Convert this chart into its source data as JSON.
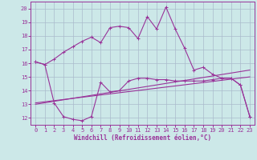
{
  "xlabel": "Windchill (Refroidissement éolien,°C)",
  "bg_color": "#cce8e8",
  "grid_color": "#aabbcc",
  "line_color": "#993399",
  "x_ticks": [
    0,
    1,
    2,
    3,
    4,
    5,
    6,
    7,
    8,
    9,
    10,
    11,
    12,
    13,
    14,
    15,
    16,
    17,
    18,
    19,
    20,
    21,
    22,
    23
  ],
  "y_ticks": [
    12,
    13,
    14,
    15,
    16,
    17,
    18,
    19,
    20
  ],
  "xlim": [
    -0.5,
    23.5
  ],
  "ylim": [
    11.5,
    20.5
  ],
  "line1_x": [
    0,
    1,
    2,
    3,
    4,
    5,
    6,
    7,
    8,
    9,
    10,
    11,
    12,
    13,
    14,
    15,
    16,
    17,
    18,
    19,
    20,
    21,
    22,
    23
  ],
  "line1_y": [
    16.1,
    15.9,
    16.3,
    16.8,
    17.2,
    17.6,
    17.9,
    17.5,
    18.6,
    18.7,
    18.6,
    17.8,
    19.4,
    18.5,
    20.1,
    18.5,
    17.1,
    15.5,
    15.7,
    15.2,
    14.9,
    14.9,
    14.4,
    12.1
  ],
  "line2_x": [
    0,
    1,
    2,
    3,
    4,
    5,
    6,
    7,
    8,
    9,
    10,
    11,
    12,
    13,
    14,
    15,
    16,
    17,
    18,
    19,
    20,
    21,
    22,
    23
  ],
  "line2_y": [
    16.1,
    15.9,
    13.1,
    12.1,
    11.9,
    11.8,
    12.1,
    14.6,
    13.9,
    14.0,
    14.7,
    14.9,
    14.9,
    14.8,
    14.8,
    14.7,
    14.7,
    14.7,
    14.7,
    14.8,
    14.9,
    14.9,
    14.4,
    12.1
  ],
  "line3_x": [
    0,
    23
  ],
  "line3_y": [
    13.0,
    15.5
  ],
  "line4_x": [
    0,
    23
  ],
  "line4_y": [
    13.1,
    15.0
  ],
  "marker": "+",
  "markersize": 3,
  "linewidth": 0.8,
  "tick_fontsize": 5,
  "label_fontsize": 5.5
}
